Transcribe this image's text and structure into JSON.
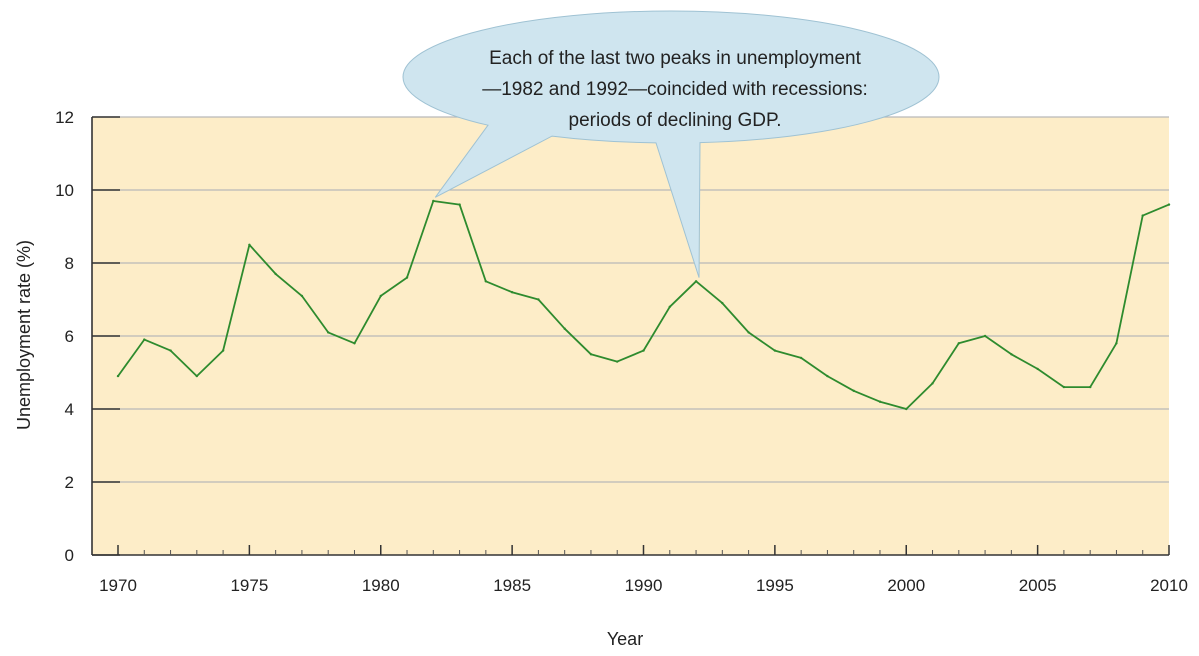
{
  "chart_data": {
    "type": "line",
    "title": "",
    "xlabel": "Year",
    "ylabel": "Unemployment rate (%)",
    "xlim": [
      1970,
      2010
    ],
    "ylim": [
      0,
      12
    ],
    "x_ticks": [
      1970,
      1975,
      1980,
      1985,
      1990,
      1995,
      2000,
      2005,
      2010
    ],
    "y_ticks": [
      0,
      2,
      4,
      6,
      8,
      10,
      12
    ],
    "grid": true,
    "legend": "none",
    "colors": {
      "plot_background": "#fdedc8",
      "line": "#2e8b2e",
      "grid": "#b9b9b9",
      "callout_fill": "#cfe5ef"
    },
    "series": [
      {
        "x": [
          1970,
          1971,
          1972,
          1973,
          1974,
          1975,
          1976,
          1977,
          1978,
          1979,
          1980,
          1981,
          1982,
          1983,
          1984,
          1985,
          1986,
          1987,
          1988,
          1989,
          1990,
          1991,
          1992,
          1993,
          1994,
          1995,
          1996,
          1997,
          1998,
          1999,
          2000,
          2001,
          2002,
          2003,
          2004,
          2005,
          2006,
          2007,
          2008,
          2009,
          2010
        ],
        "values": [
          4.9,
          5.9,
          5.6,
          4.9,
          5.6,
          8.5,
          7.7,
          7.1,
          6.1,
          5.8,
          7.1,
          7.6,
          9.7,
          9.6,
          7.5,
          7.2,
          7.0,
          6.2,
          5.5,
          5.3,
          5.6,
          6.8,
          7.5,
          6.9,
          6.1,
          5.6,
          5.4,
          4.9,
          4.5,
          4.2,
          4.0,
          4.7,
          5.8,
          6.0,
          5.5,
          5.1,
          4.6,
          4.6,
          5.8,
          9.3,
          9.6
        ]
      }
    ],
    "annotations": [
      {
        "lines": [
          "Each of the last two peaks in unemployment",
          "—1982 and 1992—coincided with recessions:",
          "periods of declining GDP."
        ],
        "points_to": [
          1982,
          1992
        ]
      }
    ]
  }
}
